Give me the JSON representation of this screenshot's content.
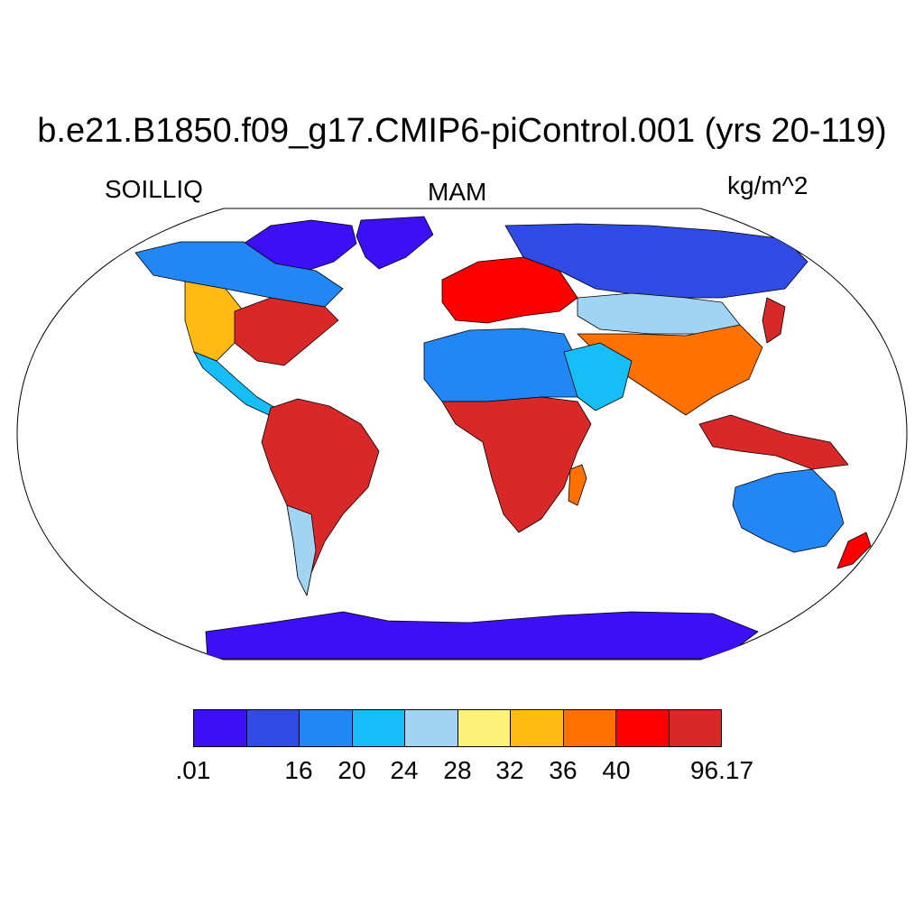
{
  "title": "b.e21.B1850.f09_g17.CMIP6-piControl.001 (yrs 20-119)",
  "variable": "SOILLIQ",
  "season": "MAM",
  "units": "kg/m^2",
  "colorbar": {
    "colors": [
      "#3c0ff5",
      "#2f4be4",
      "#2287f5",
      "#16bdf7",
      "#a1d4f2",
      "#fff27a",
      "#ffbb13",
      "#ff7100",
      "#ff0000",
      "#d92828"
    ],
    "labels": [
      ".01",
      "16",
      "20",
      "24",
      "28",
      "32",
      "36",
      "40",
      "96.17"
    ]
  },
  "ocean_color": "#ffffff",
  "coastline_color": "#000000"
}
